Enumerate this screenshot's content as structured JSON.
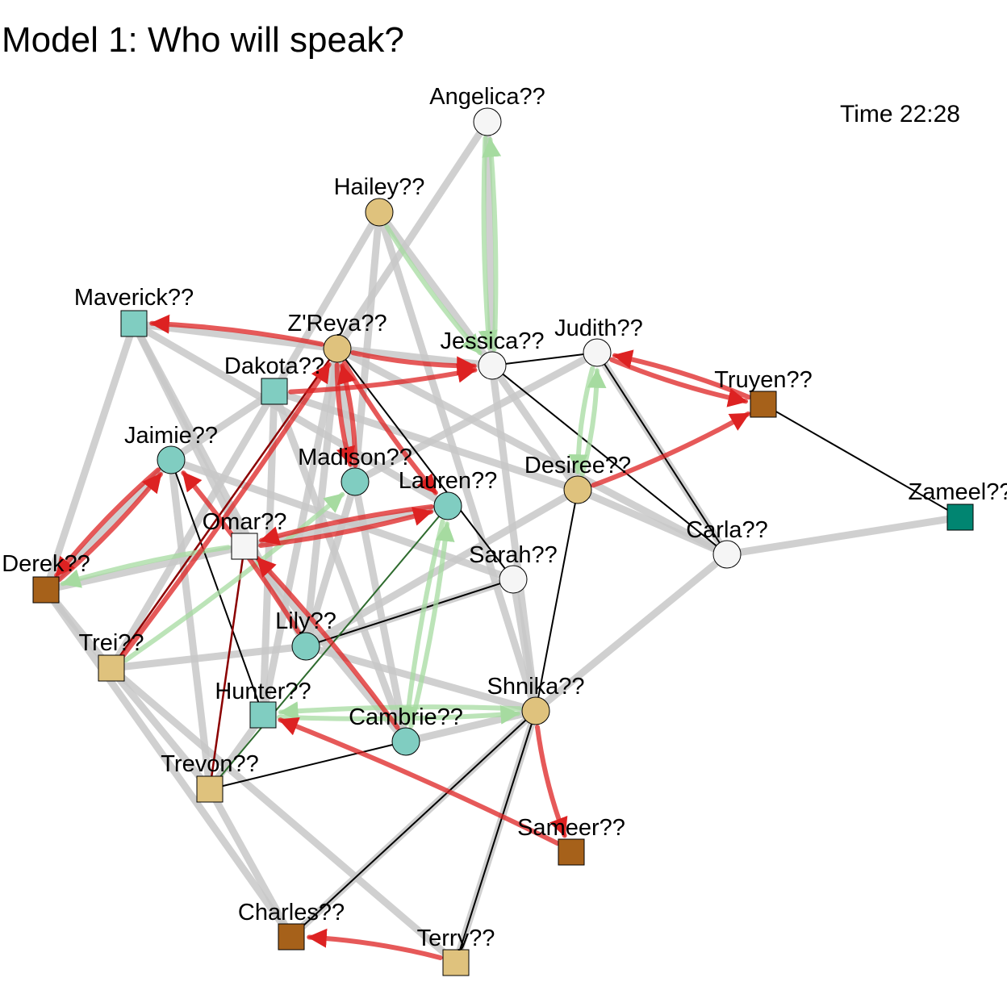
{
  "title": "Model 1: Who will speak?",
  "time_label": "Time 22:28",
  "colors": {
    "weak_edge": "#c8c8c8",
    "black_edge": "#000000",
    "dark_red_edge": "#8b0000",
    "dark_green_edge": "#2e6b2e",
    "red_arrow": "#dd2222",
    "green_arrow": "#a6dba0",
    "node_white": "#f5f5f5",
    "node_tan": "#dfc27d",
    "node_teal": "#80cdc1",
    "node_brown": "#a6611a",
    "node_dark_teal": "#018571"
  },
  "nodes": [
    {
      "id": "angelica",
      "label": "Angelica??",
      "shape": "circle",
      "fill": "#f5f5f5"
    },
    {
      "id": "hailey",
      "label": "Hailey??",
      "shape": "circle",
      "fill": "#dfc27d"
    },
    {
      "id": "maverick",
      "label": "Maverick??",
      "shape": "square",
      "fill": "#80cdc1"
    },
    {
      "id": "zreya",
      "label": "Z'Reya??",
      "shape": "circle",
      "fill": "#dfc27d"
    },
    {
      "id": "jessica",
      "label": "Jessica??",
      "shape": "circle",
      "fill": "#f5f5f5"
    },
    {
      "id": "judith",
      "label": "Judith??",
      "shape": "circle",
      "fill": "#f5f5f5"
    },
    {
      "id": "dakota",
      "label": "Dakota??",
      "shape": "square",
      "fill": "#80cdc1"
    },
    {
      "id": "truyen",
      "label": "Truyen??",
      "shape": "square",
      "fill": "#a6611a"
    },
    {
      "id": "jaimie",
      "label": "Jaimie??",
      "shape": "circle",
      "fill": "#80cdc1"
    },
    {
      "id": "madison",
      "label": "Madison??",
      "shape": "circle",
      "fill": "#80cdc1"
    },
    {
      "id": "desiree",
      "label": "Desiree??",
      "shape": "circle",
      "fill": "#dfc27d"
    },
    {
      "id": "lauren",
      "label": "Lauren??",
      "shape": "circle",
      "fill": "#80cdc1"
    },
    {
      "id": "zameel",
      "label": "Zameel??",
      "shape": "square",
      "fill": "#018571"
    },
    {
      "id": "omar",
      "label": "Omar??",
      "shape": "square",
      "fill": "#f5f5f5"
    },
    {
      "id": "carla",
      "label": "Carla??",
      "shape": "circle",
      "fill": "#f5f5f5"
    },
    {
      "id": "sarah",
      "label": "Sarah??",
      "shape": "circle",
      "fill": "#f5f5f5"
    },
    {
      "id": "derek",
      "label": "Derek??",
      "shape": "square",
      "fill": "#a6611a"
    },
    {
      "id": "lily",
      "label": "Lily??",
      "shape": "circle",
      "fill": "#80cdc1"
    },
    {
      "id": "trei",
      "label": "Trei??",
      "shape": "square",
      "fill": "#dfc27d"
    },
    {
      "id": "shnika",
      "label": "Shnika??",
      "shape": "circle",
      "fill": "#dfc27d"
    },
    {
      "id": "hunter",
      "label": "Hunter??",
      "shape": "square",
      "fill": "#80cdc1"
    },
    {
      "id": "cambrie",
      "label": "Cambrie??",
      "shape": "circle",
      "fill": "#80cdc1"
    },
    {
      "id": "trevon",
      "label": "Trevon??",
      "shape": "square",
      "fill": "#dfc27d"
    },
    {
      "id": "sameer",
      "label": "Sameer??",
      "shape": "square",
      "fill": "#a6611a"
    },
    {
      "id": "charles",
      "label": "Charles??",
      "shape": "square",
      "fill": "#a6611a"
    },
    {
      "id": "terry",
      "label": "Terry??",
      "shape": "square",
      "fill": "#dfc27d"
    }
  ],
  "weak_edges": [
    [
      "angelica",
      "jessica"
    ],
    [
      "angelica",
      "zreya"
    ],
    [
      "hailey",
      "dakota"
    ],
    [
      "hailey",
      "jessica"
    ],
    [
      "hailey",
      "madison"
    ],
    [
      "hailey",
      "shnika"
    ],
    [
      "maverick",
      "zreya"
    ],
    [
      "maverick",
      "derek"
    ],
    [
      "maverick",
      "lily"
    ],
    [
      "maverick",
      "lauren"
    ],
    [
      "maverick",
      "omar"
    ],
    [
      "zreya",
      "madison"
    ],
    [
      "zreya",
      "jessica"
    ],
    [
      "zreya",
      "carla"
    ],
    [
      "zreya",
      "lily"
    ],
    [
      "zreya",
      "hunter"
    ],
    [
      "dakota",
      "jaimie"
    ],
    [
      "dakota",
      "desiree"
    ],
    [
      "dakota",
      "trei"
    ],
    [
      "dakota",
      "hunter"
    ],
    [
      "dakota",
      "cambrie"
    ],
    [
      "jaimie",
      "sarah"
    ],
    [
      "jaimie",
      "trevon"
    ],
    [
      "jaimie",
      "derek"
    ],
    [
      "madison",
      "lily"
    ],
    [
      "madison",
      "cambrie"
    ],
    [
      "jessica",
      "shnika"
    ],
    [
      "jessica",
      "desiree"
    ],
    [
      "judith",
      "madison"
    ],
    [
      "judith",
      "carla"
    ],
    [
      "desiree",
      "carla"
    ],
    [
      "desiree",
      "lily"
    ],
    [
      "lauren",
      "omar"
    ],
    [
      "carla",
      "zameel"
    ],
    [
      "carla",
      "shnika"
    ],
    [
      "derek",
      "omar"
    ],
    [
      "derek",
      "trevon"
    ],
    [
      "derek",
      "charles"
    ],
    [
      "trei",
      "terry"
    ],
    [
      "trei",
      "lily"
    ],
    [
      "lily",
      "shnika"
    ],
    [
      "omar",
      "cambrie"
    ],
    [
      "hunter",
      "trevon"
    ],
    [
      "cambrie",
      "shnika"
    ],
    [
      "trevon",
      "charles"
    ],
    [
      "charles",
      "shnika"
    ],
    [
      "terry",
      "shnika"
    ],
    [
      "sarah",
      "shnika"
    ],
    [
      "sarah",
      "lily"
    ]
  ],
  "black_edges": [
    [
      "jessica",
      "judith"
    ],
    [
      "jessica",
      "carla"
    ],
    [
      "judith",
      "carla"
    ],
    [
      "truyen",
      "zameel"
    ],
    [
      "zreya",
      "sarah"
    ],
    [
      "desiree",
      "shnika"
    ],
    [
      "lily",
      "sarah"
    ],
    [
      "jaimie",
      "hunter"
    ],
    [
      "trevon",
      "cambrie"
    ],
    [
      "shnika",
      "charles"
    ],
    [
      "shnika",
      "terry"
    ]
  ],
  "dark_red_edges": [
    [
      "trevon",
      "omar"
    ],
    [
      "trei",
      "zreya"
    ]
  ],
  "dark_green_edges": [
    [
      "trevon",
      "lauren"
    ]
  ],
  "red_arrows": [
    [
      "zreya",
      "maverick"
    ],
    [
      "zreya",
      "jessica"
    ],
    [
      "dakota",
      "jessica"
    ],
    [
      "zreya",
      "madison"
    ],
    [
      "madison",
      "zreya"
    ],
    [
      "zreya",
      "lauren"
    ],
    [
      "omar",
      "lauren"
    ],
    [
      "lauren",
      "omar"
    ],
    [
      "trei",
      "zreya"
    ],
    [
      "derek",
      "jaimie"
    ],
    [
      "jaimie",
      "derek"
    ],
    [
      "truyen",
      "judith"
    ],
    [
      "judith",
      "truyen"
    ],
    [
      "desiree",
      "truyen"
    ],
    [
      "cambrie",
      "omar"
    ],
    [
      "lily",
      "jaimie"
    ],
    [
      "shnika",
      "sameer"
    ],
    [
      "sameer",
      "hunter"
    ],
    [
      "terry",
      "charles"
    ]
  ],
  "green_arrows": [
    [
      "angelica",
      "jessica"
    ],
    [
      "jessica",
      "angelica"
    ],
    [
      "hailey",
      "jessica"
    ],
    [
      "judith",
      "desiree"
    ],
    [
      "desiree",
      "judith"
    ],
    [
      "cambrie",
      "lauren"
    ],
    [
      "lauren",
      "cambrie"
    ],
    [
      "hunter",
      "shnika"
    ],
    [
      "shnika",
      "hunter"
    ],
    [
      "trei",
      "madison"
    ],
    [
      "omar",
      "derek"
    ]
  ]
}
